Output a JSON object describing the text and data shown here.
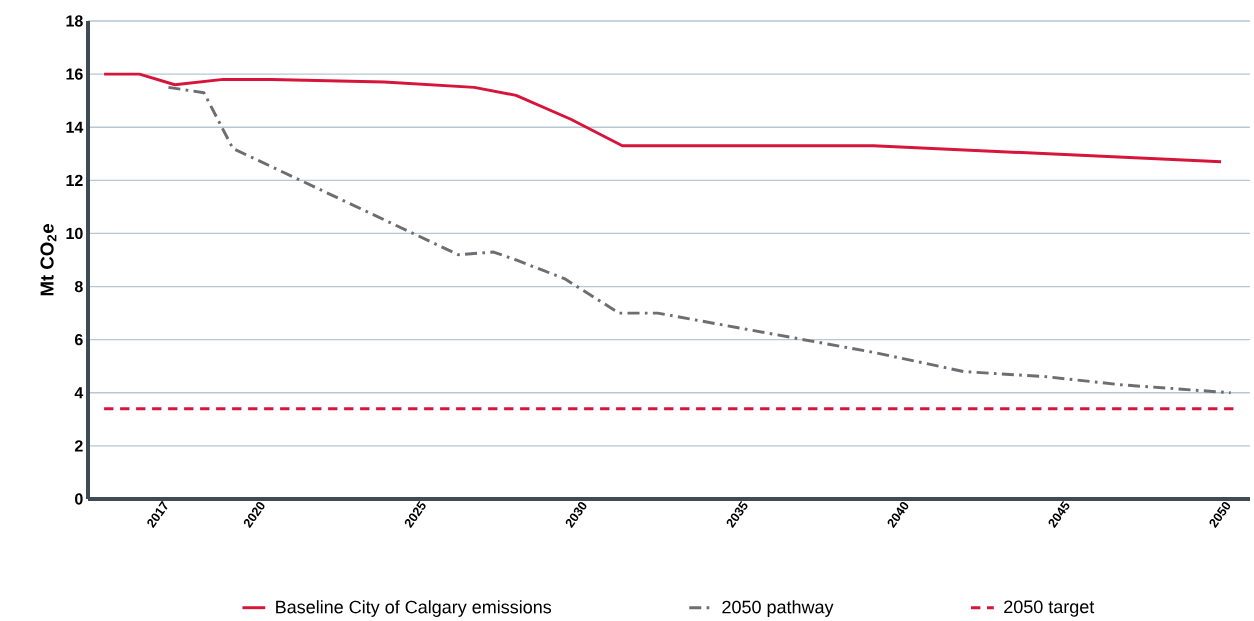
{
  "chart_data": {
    "type": "line",
    "ylabel": "Mt CO$_{2}$e",
    "xlim": [
      2014.5,
      2050.6
    ],
    "xticks": [
      2017,
      2020,
      2025,
      2030,
      2035,
      2040,
      2045,
      2050
    ],
    "ylim": [
      0,
      18
    ],
    "yticks": [
      0,
      2,
      4,
      6,
      8,
      10,
      12,
      14,
      16,
      18
    ],
    "grid": "y",
    "legend": "bottom",
    "series": [
      {
        "name": "Baseline City of Calgary emissions",
        "color": "#d7143a",
        "line_style": "solid",
        "x": [
          2015.0,
          2016.1,
          2017.2,
          2018.7,
          2020.2,
          2023.7,
          2026.5,
          2027.8,
          2029.5,
          2031.1,
          2038.9,
          2049.7
        ],
        "values": [
          16.0,
          16.0,
          15.6,
          15.8,
          15.8,
          15.7,
          15.5,
          15.2,
          14.3,
          13.3,
          13.3,
          12.7
        ]
      },
      {
        "name": "2050 pathway",
        "color": "#6d6e71",
        "line_style": "dashdot",
        "x": [
          2017.0,
          2018.1,
          2019.0,
          2026.0,
          2027.1,
          2027.8,
          2029.3,
          2031.0,
          2032.2,
          2039.0,
          2041.7,
          2044.3,
          2046.6,
          2050.0
        ],
        "values": [
          15.5,
          15.3,
          13.2,
          9.2,
          9.3,
          9.0,
          8.3,
          7.0,
          7.0,
          5.5,
          4.8,
          4.6,
          4.3,
          4.0
        ]
      },
      {
        "name": "2050 target",
        "color": "#d7143a",
        "line_style": "dashed",
        "x": [
          2015.0,
          2050.2
        ],
        "values": [
          3.4,
          3.4
        ]
      }
    ]
  }
}
